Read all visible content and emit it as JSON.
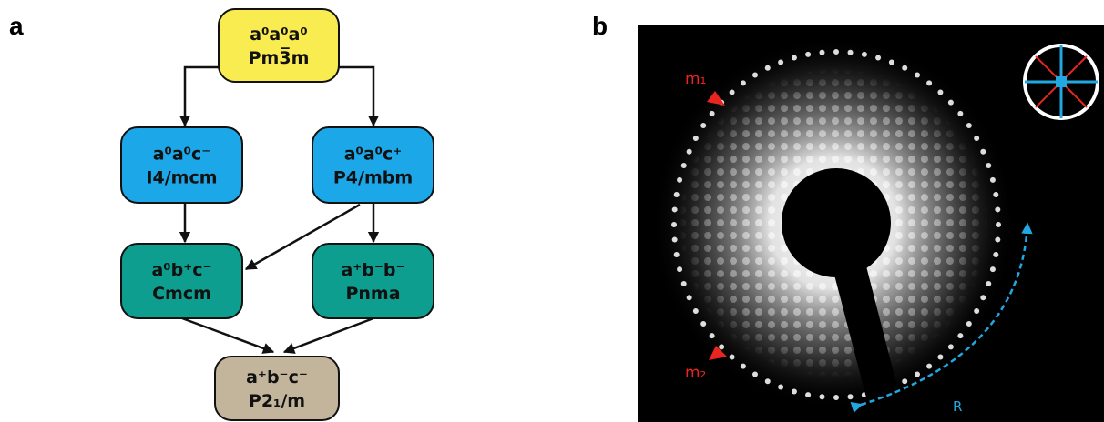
{
  "panels": {
    "a": "a",
    "b": "b"
  },
  "diagram": {
    "nodes": [
      {
        "line1": "a⁰a⁰a⁰",
        "line2": "Pm3̅m"
      },
      {
        "line1": "a⁰a⁰c⁻",
        "line2": "I4/mcm"
      },
      {
        "line1": "a⁰a⁰c⁺",
        "line2": "P4/mbm"
      },
      {
        "line1": "a⁰b⁺c⁻",
        "line2": "Cmcm"
      },
      {
        "line1": "a⁺b⁻b⁻",
        "line2": "Pnma"
      },
      {
        "line1": "a⁺b⁻c⁻",
        "line2": "P2₁/m"
      }
    ]
  },
  "image": {
    "annotations": {
      "m1": "m₁",
      "m2": "m₂",
      "r": "R"
    }
  }
}
